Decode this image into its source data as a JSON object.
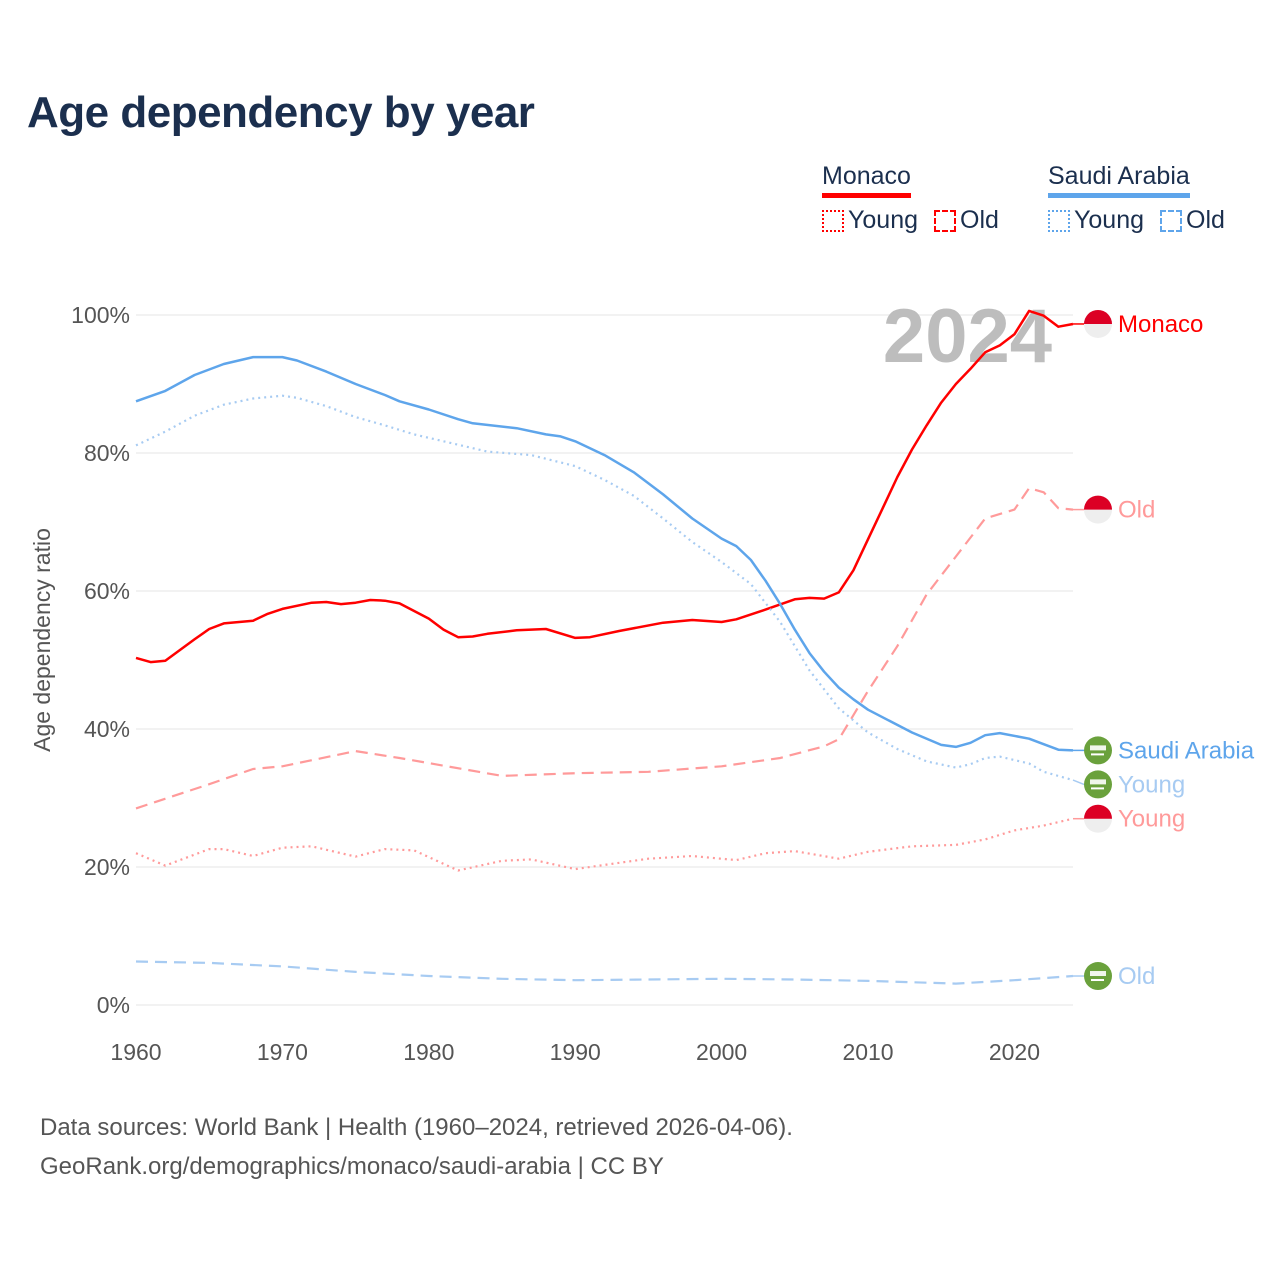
{
  "title": "Age dependency by year",
  "legend": {
    "groups": [
      {
        "name": "Monaco",
        "color": "#ff0000",
        "items": [
          {
            "label": "Young",
            "style": "dotted"
          },
          {
            "label": "Old",
            "style": "dashed"
          }
        ]
      },
      {
        "name": "Saudi Arabia",
        "color": "#5ea5eb",
        "items": [
          {
            "label": "Young",
            "style": "dotted"
          },
          {
            "label": "Old",
            "style": "dashed"
          }
        ]
      }
    ]
  },
  "footer": {
    "line1": "Data sources: World Bank | Health (1960–2024, retrieved 2026-04-06).",
    "line2": "GeoRank.org/demographics/monaco/saudi-arabia | CC BY"
  },
  "chart_data": {
    "type": "line",
    "title": "Age dependency by year",
    "xlabel": "",
    "ylabel": "Age dependency ratio",
    "xlim": [
      1960,
      2024
    ],
    "ylim": [
      0,
      100
    ],
    "x_ticks": [
      1960,
      1970,
      1980,
      1990,
      2000,
      2010,
      2020
    ],
    "y_ticks": [
      0,
      20,
      40,
      60,
      80,
      100
    ],
    "y_tick_labels": [
      "0%",
      "20%",
      "40%",
      "60%",
      "80%",
      "100%"
    ],
    "grid": true,
    "watermark_year": "2024",
    "series": [
      {
        "name": "Monaco",
        "end_label": "Monaco",
        "country": "monaco",
        "color": "#ff0000",
        "style": "solid",
        "points": [
          [
            1960,
            50.3
          ],
          [
            1961,
            49.7
          ],
          [
            1962,
            49.9
          ],
          [
            1964,
            53
          ],
          [
            1965,
            54.5
          ],
          [
            1966,
            55.3
          ],
          [
            1968,
            55.7
          ],
          [
            1969,
            56.7
          ],
          [
            1970,
            57.4
          ],
          [
            1972,
            58.3
          ],
          [
            1973,
            58.4
          ],
          [
            1974,
            58.1
          ],
          [
            1975,
            58.3
          ],
          [
            1976,
            58.7
          ],
          [
            1977,
            58.6
          ],
          [
            1978,
            58.2
          ],
          [
            1980,
            56.0
          ],
          [
            1981,
            54.4
          ],
          [
            1982,
            53.3
          ],
          [
            1983,
            53.4
          ],
          [
            1984,
            53.8
          ],
          [
            1986,
            54.3
          ],
          [
            1988,
            54.5
          ],
          [
            1990,
            53.2
          ],
          [
            1991,
            53.3
          ],
          [
            1993,
            54.2
          ],
          [
            1996,
            55.4
          ],
          [
            1998,
            55.8
          ],
          [
            2000,
            55.5
          ],
          [
            2001,
            55.9
          ],
          [
            2003,
            57.3
          ],
          [
            2005,
            58.8
          ],
          [
            2006,
            59.0
          ],
          [
            2007,
            58.9
          ],
          [
            2008,
            59.8
          ],
          [
            2009,
            63
          ],
          [
            2010,
            67.5
          ],
          [
            2011,
            72
          ],
          [
            2012,
            76.5
          ],
          [
            2013,
            80.5
          ],
          [
            2014,
            84
          ],
          [
            2015,
            87.3
          ],
          [
            2016,
            90
          ],
          [
            2017,
            92.2
          ],
          [
            2018,
            94.6
          ],
          [
            2019,
            95.6
          ],
          [
            2020,
            97.2
          ],
          [
            2021,
            100.6
          ],
          [
            2022,
            99.9
          ],
          [
            2023,
            98.3
          ],
          [
            2024,
            98.7
          ]
        ]
      },
      {
        "name": "Monaco Old",
        "end_label": "Old",
        "country": "monaco",
        "color": "#ff9a9a",
        "style": "dashed",
        "points": [
          [
            1960,
            28.5
          ],
          [
            1965,
            32
          ],
          [
            1968,
            34.2
          ],
          [
            1970,
            34.6
          ],
          [
            1975,
            36.8
          ],
          [
            1978,
            35.8
          ],
          [
            1985,
            33.2
          ],
          [
            1990,
            33.6
          ],
          [
            1995,
            33.8
          ],
          [
            2000,
            34.6
          ],
          [
            2004,
            35.8
          ],
          [
            2007,
            37.5
          ],
          [
            2008,
            38.5
          ],
          [
            2010,
            45.5
          ],
          [
            2012,
            52
          ],
          [
            2014,
            59.5
          ],
          [
            2016,
            65
          ],
          [
            2018,
            70.5
          ],
          [
            2020,
            71.8
          ],
          [
            2021,
            74.9
          ],
          [
            2022,
            74.3
          ],
          [
            2023,
            72
          ],
          [
            2024,
            71.8
          ]
        ]
      },
      {
        "name": "Monaco Young",
        "end_label": "Young",
        "country": "monaco",
        "color": "#ff9a9a",
        "style": "dotted",
        "points": [
          [
            1960,
            22
          ],
          [
            1962,
            20.2
          ],
          [
            1965,
            22.6
          ],
          [
            1966,
            22.6
          ],
          [
            1968,
            21.6
          ],
          [
            1970,
            22.8
          ],
          [
            1972,
            23
          ],
          [
            1975,
            21.5
          ],
          [
            1977,
            22.6
          ],
          [
            1979,
            22.4
          ],
          [
            1982,
            19.5
          ],
          [
            1985,
            20.9
          ],
          [
            1987,
            21.1
          ],
          [
            1990,
            19.7
          ],
          [
            1992,
            20.3
          ],
          [
            1995,
            21.2
          ],
          [
            1998,
            21.6
          ],
          [
            2001,
            21
          ],
          [
            2003,
            22
          ],
          [
            2005,
            22.3
          ],
          [
            2008,
            21.2
          ],
          [
            2010,
            22.2
          ],
          [
            2013,
            23
          ],
          [
            2016,
            23.2
          ],
          [
            2018,
            24
          ],
          [
            2020,
            25.3
          ],
          [
            2022,
            26
          ],
          [
            2024,
            27
          ]
        ]
      },
      {
        "name": "Saudi Arabia",
        "end_label": "Saudi Arabia",
        "country": "saudi",
        "color": "#5ea5eb",
        "style": "solid",
        "points": [
          [
            1960,
            87.5
          ],
          [
            1962,
            89
          ],
          [
            1964,
            91.3
          ],
          [
            1966,
            92.9
          ],
          [
            1968,
            93.9
          ],
          [
            1970,
            93.9
          ],
          [
            1971,
            93.4
          ],
          [
            1973,
            91.8
          ],
          [
            1975,
            90
          ],
          [
            1977,
            88.4
          ],
          [
            1978,
            87.5
          ],
          [
            1980,
            86.3
          ],
          [
            1982,
            84.9
          ],
          [
            1983,
            84.3
          ],
          [
            1986,
            83.6
          ],
          [
            1988,
            82.7
          ],
          [
            1989,
            82.4
          ],
          [
            1990,
            81.7
          ],
          [
            1992,
            79.7
          ],
          [
            1994,
            77.2
          ],
          [
            1996,
            74.0
          ],
          [
            1998,
            70.5
          ],
          [
            2000,
            67.6
          ],
          [
            2001,
            66.5
          ],
          [
            2002,
            64.5
          ],
          [
            2003,
            61.5
          ],
          [
            2004,
            58.1
          ],
          [
            2005,
            54.4
          ],
          [
            2006,
            51.0
          ],
          [
            2007,
            48.3
          ],
          [
            2008,
            46
          ],
          [
            2009,
            44.3
          ],
          [
            2010,
            42.8
          ],
          [
            2012,
            40.6
          ],
          [
            2013,
            39.5
          ],
          [
            2015,
            37.7
          ],
          [
            2016,
            37.4
          ],
          [
            2017,
            38
          ],
          [
            2018,
            39.1
          ],
          [
            2019,
            39.4
          ],
          [
            2021,
            38.6
          ],
          [
            2022,
            37.8
          ],
          [
            2023,
            37
          ],
          [
            2024,
            36.9
          ]
        ]
      },
      {
        "name": "Saudi Arabia Young",
        "end_label": "Young",
        "country": "saudi",
        "color": "#a7cbf2",
        "style": "dotted",
        "points": [
          [
            1960,
            81.1
          ],
          [
            1962,
            83.1
          ],
          [
            1964,
            85.4
          ],
          [
            1966,
            87
          ],
          [
            1968,
            87.9
          ],
          [
            1970,
            88.3
          ],
          [
            1971,
            88
          ],
          [
            1973,
            86.8
          ],
          [
            1975,
            85.2
          ],
          [
            1977,
            84
          ],
          [
            1979,
            82.7
          ],
          [
            1982,
            81.2
          ],
          [
            1984,
            80.2
          ],
          [
            1987,
            79.7
          ],
          [
            1990,
            78.1
          ],
          [
            1992,
            76.1
          ],
          [
            1994,
            73.8
          ],
          [
            1996,
            70.5
          ],
          [
            1998,
            67.1
          ],
          [
            2000,
            64.2
          ],
          [
            2002,
            61.0
          ],
          [
            2004,
            55.5
          ],
          [
            2006,
            48.5
          ],
          [
            2008,
            43
          ],
          [
            2010,
            39.5
          ],
          [
            2012,
            37.1
          ],
          [
            2014,
            35.3
          ],
          [
            2016,
            34.4
          ],
          [
            2017,
            34.9
          ],
          [
            2018,
            35.8
          ],
          [
            2019,
            36.0
          ],
          [
            2021,
            35.0
          ],
          [
            2022,
            33.8
          ],
          [
            2024,
            32.6
          ]
        ]
      },
      {
        "name": "Saudi Arabia Old",
        "end_label": "Old",
        "country": "saudi",
        "color": "#a7cbf2",
        "style": "dashed",
        "points": [
          [
            1960,
            6.3
          ],
          [
            1965,
            6.1
          ],
          [
            1970,
            5.6
          ],
          [
            1975,
            4.8
          ],
          [
            1980,
            4.2
          ],
          [
            1985,
            3.8
          ],
          [
            1990,
            3.6
          ],
          [
            1995,
            3.7
          ],
          [
            2000,
            3.8
          ],
          [
            2005,
            3.7
          ],
          [
            2010,
            3.5
          ],
          [
            2016,
            3.1
          ],
          [
            2020,
            3.6
          ],
          [
            2024,
            4.2
          ]
        ]
      }
    ]
  }
}
